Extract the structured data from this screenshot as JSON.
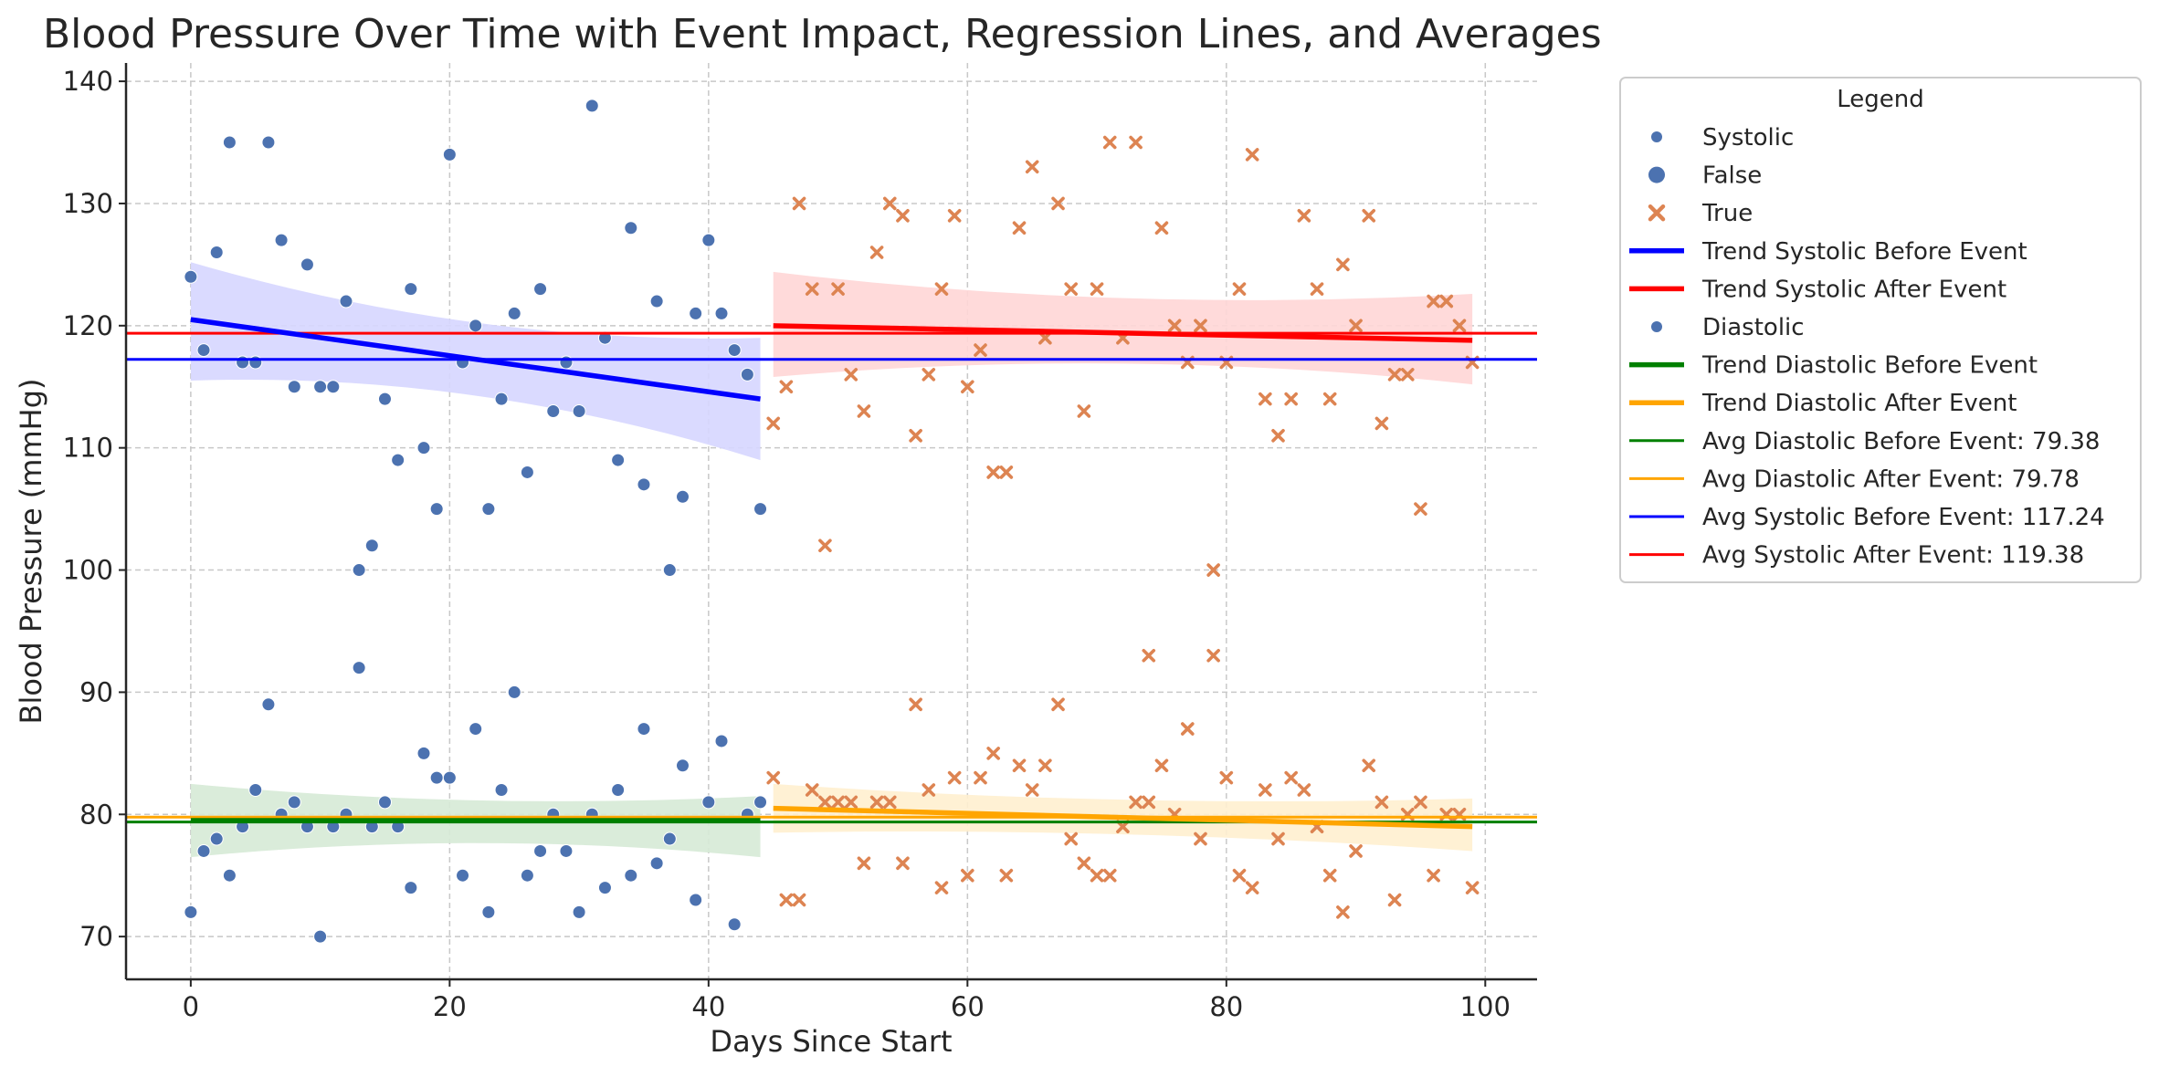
{
  "chart_data": {
    "type": "scatter",
    "title": "Blood Pressure Over Time with Event Impact, Regression Lines, and Averages",
    "xlabel": "Days Since Start",
    "ylabel": "Blood Pressure (mmHg)",
    "xlim": [
      -5,
      104
    ],
    "ylim": [
      66.5,
      141.5
    ],
    "xticks": [
      0,
      20,
      40,
      60,
      80,
      100
    ],
    "yticks": [
      70,
      80,
      90,
      100,
      110,
      120,
      130,
      140
    ],
    "grid": true,
    "legend_placement": "outside right, top",
    "legend_title": "Legend",
    "colors": {
      "points_before": "#4c72b0",
      "points_after": "#dd8452",
      "trend_systolic_before": "#0000ff",
      "trend_systolic_after": "#ff0000",
      "trend_diastolic_before": "#008000",
      "trend_diastolic_after": "#ffa500"
    },
    "legend": [
      {
        "label": "Systolic",
        "kind": "dot-small",
        "color": "#4c72b0"
      },
      {
        "label": "False",
        "kind": "dot",
        "color": "#4c72b0"
      },
      {
        "label": "True",
        "kind": "cross",
        "color": "#dd8452"
      },
      {
        "label": "Trend Systolic Before Event",
        "kind": "thick",
        "color": "#0000ff"
      },
      {
        "label": "Trend Systolic After Event",
        "kind": "thick",
        "color": "#ff0000"
      },
      {
        "label": "Diastolic",
        "kind": "dot-small",
        "color": "#4c72b0"
      },
      {
        "label": "Trend Diastolic Before Event",
        "kind": "thick",
        "color": "#008000"
      },
      {
        "label": "Trend Diastolic After Event",
        "kind": "thick",
        "color": "#ffa500"
      },
      {
        "label": "Avg Diastolic Before Event: 79.38",
        "kind": "thin",
        "color": "#008000"
      },
      {
        "label": "Avg Diastolic After Event: 79.78",
        "kind": "thin",
        "color": "#ffa500"
      },
      {
        "label": "Avg Systolic Before Event: 117.24",
        "kind": "thin",
        "color": "#0000ff"
      },
      {
        "label": "Avg Systolic After Event: 119.38",
        "kind": "thin",
        "color": "#ff0000"
      }
    ],
    "averages": [
      {
        "name": "Avg Diastolic Before Event",
        "value": 79.38,
        "color": "#008000"
      },
      {
        "name": "Avg Diastolic After Event",
        "value": 79.78,
        "color": "#ffa500"
      },
      {
        "name": "Avg Systolic Before Event",
        "value": 117.24,
        "color": "#0000ff"
      },
      {
        "name": "Avg Systolic After Event",
        "value": 119.38,
        "color": "#ff0000"
      }
    ],
    "trends": [
      {
        "name": "Trend Systolic Before Event",
        "x": [
          0,
          44
        ],
        "y": [
          120.5,
          114.0
        ],
        "band_start": [
          115.5,
          125.2
        ],
        "band_mid": [
          116.3,
          118.4
        ],
        "band_end": [
          109.0,
          119.0
        ],
        "color": "#0000ff",
        "band_color": "#d6d6ff"
      },
      {
        "name": "Trend Systolic After Event",
        "x": [
          45,
          99
        ],
        "y": [
          120.0,
          118.8
        ],
        "band_start": [
          115.8,
          124.4
        ],
        "band_mid": [
          118.3,
          121.0
        ],
        "band_end": [
          115.2,
          122.6
        ],
        "color": "#ff0000",
        "band_color": "#ffd6d6"
      },
      {
        "name": "Trend Diastolic Before Event",
        "x": [
          0,
          44
        ],
        "y": [
          79.5,
          79.5
        ],
        "band_start": [
          76.5,
          82.5
        ],
        "band_mid": [
          78.8,
          80.3
        ],
        "band_end": [
          76.5,
          81.5
        ],
        "color": "#008000",
        "band_color": "#d6ead6"
      },
      {
        "name": "Trend Diastolic After Event",
        "x": [
          45,
          99
        ],
        "y": [
          80.5,
          79.0
        ],
        "band_start": [
          78.5,
          82.5
        ],
        "band_mid": [
          79.0,
          80.5
        ],
        "band_end": [
          77.0,
          81.3
        ],
        "color": "#ffa500",
        "band_color": "#ffefcf"
      }
    ],
    "series": [
      {
        "name": "False",
        "marker": "o",
        "x": [
          0,
          1,
          2,
          3,
          4,
          5,
          6,
          7,
          8,
          9,
          10,
          11,
          12,
          13,
          14,
          15,
          16,
          17,
          18,
          19,
          20,
          21,
          22,
          23,
          24,
          25,
          26,
          27,
          28,
          29,
          30,
          31,
          32,
          33,
          34,
          35,
          36,
          37,
          38,
          39,
          40,
          41,
          42,
          43,
          44,
          0,
          1,
          2,
          3,
          4,
          5,
          6,
          7,
          8,
          9,
          10,
          11,
          12,
          13,
          14,
          15,
          16,
          17,
          18,
          19,
          20,
          21,
          22,
          23,
          24,
          25,
          26,
          27,
          28,
          29,
          30,
          31,
          32,
          33,
          34,
          35,
          36,
          37,
          38,
          39,
          40,
          41,
          42,
          43,
          44
        ],
        "y": [
          124,
          118,
          126,
          135,
          117,
          117,
          135,
          127,
          115,
          125,
          115,
          115,
          122,
          100,
          102,
          114,
          109,
          123,
          110,
          105,
          134,
          117,
          120,
          105,
          114,
          121,
          108,
          123,
          113,
          117,
          113,
          138,
          119,
          109,
          128,
          107,
          122,
          100,
          106,
          121,
          127,
          121,
          118,
          116,
          105,
          72,
          77,
          78,
          75,
          79,
          82,
          89,
          80,
          81,
          79,
          70,
          79,
          80,
          92,
          79,
          81,
          79,
          74,
          85,
          83,
          83,
          75,
          87,
          72,
          82,
          90,
          75,
          77,
          80,
          77,
          72,
          80,
          74,
          82,
          75,
          87,
          76,
          78,
          84,
          73,
          81,
          86,
          71,
          80,
          81
        ]
      },
      {
        "name": "True",
        "marker": "x",
        "x": [
          45,
          46,
          47,
          48,
          49,
          50,
          51,
          52,
          53,
          54,
          55,
          56,
          57,
          58,
          59,
          60,
          61,
          62,
          63,
          64,
          65,
          66,
          67,
          68,
          69,
          70,
          71,
          72,
          73,
          74,
          75,
          76,
          77,
          78,
          79,
          80,
          81,
          82,
          83,
          84,
          85,
          86,
          87,
          88,
          89,
          90,
          91,
          92,
          93,
          94,
          95,
          96,
          97,
          98,
          99,
          45,
          46,
          47,
          48,
          49,
          50,
          51,
          52,
          53,
          54,
          55,
          56,
          57,
          58,
          59,
          60,
          61,
          62,
          63,
          64,
          65,
          66,
          67,
          68,
          69,
          70,
          71,
          72,
          73,
          74,
          75,
          76,
          77,
          78,
          79,
          80,
          81,
          82,
          83,
          84,
          85,
          86,
          87,
          88,
          89,
          90,
          91,
          92,
          93,
          94,
          95,
          96,
          97,
          98,
          99
        ],
        "y": [
          112,
          115,
          130,
          123,
          102,
          123,
          116,
          113,
          126,
          130,
          129,
          111,
          116,
          123,
          129,
          115,
          118,
          108,
          108,
          128,
          133,
          119,
          130,
          123,
          113,
          123,
          135,
          119,
          135,
          93,
          128,
          120,
          117,
          120,
          100,
          117,
          123,
          134,
          114,
          111,
          114,
          129,
          123,
          114,
          125,
          120,
          129,
          112,
          116,
          116,
          105,
          122,
          122,
          120,
          117,
          83,
          73,
          73,
          82,
          81,
          81,
          81,
          76,
          81,
          81,
          76,
          89,
          82,
          74,
          83,
          75,
          83,
          85,
          75,
          84,
          82,
          84,
          89,
          78,
          76,
          75,
          75,
          79,
          81,
          81,
          84,
          80,
          87,
          78,
          93,
          83,
          75,
          74,
          82,
          78,
          83,
          82,
          79,
          75,
          72,
          77,
          84,
          81,
          73,
          80,
          81,
          75,
          80,
          80,
          74
        ]
      }
    ]
  }
}
